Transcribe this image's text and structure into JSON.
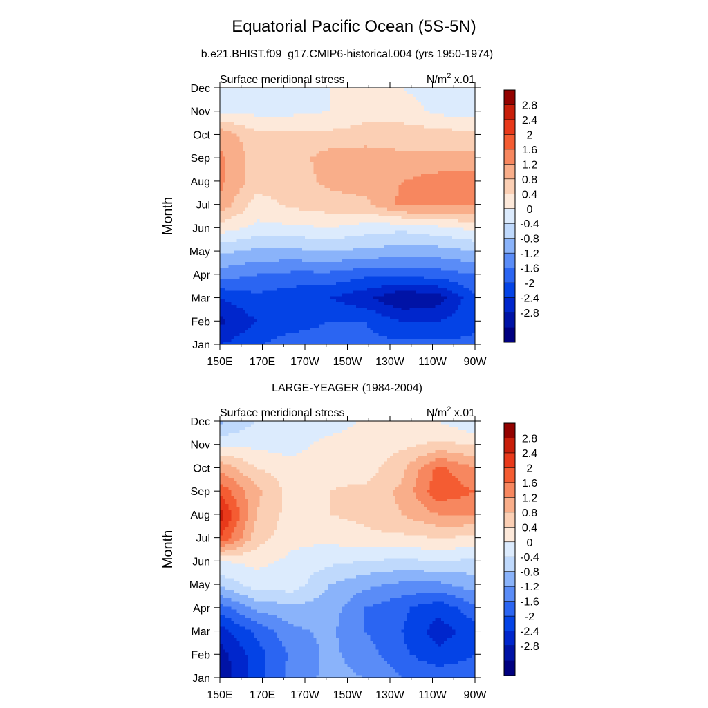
{
  "title": "Equatorial Pacific Ocean (5S-5N)",
  "subtitle": "b.e21.BHIST.f09_g17.CMIP6-historical.004 (yrs 1950-1974)",
  "panel2_title": "LARGE-YEAGER (1984-2004)",
  "chart_data": [
    {
      "type": "heatmap",
      "left_label": "Surface meridional stress",
      "right_label_base": "N/m",
      "right_label_sup": "2",
      "right_label_suffix": " x.01",
      "ylabel": "Month",
      "xlabel": "",
      "x_ticks": [
        "150E",
        "170E",
        "170W",
        "150W",
        "130W",
        "110W",
        "90W"
      ],
      "x_lon": [
        150,
        170,
        190,
        210,
        230,
        250,
        270
      ],
      "y_ticks": [
        "Jan",
        "Feb",
        "Mar",
        "Apr",
        "May",
        "Jun",
        "Jul",
        "Aug",
        "Sep",
        "Oct",
        "Nov",
        "Dec"
      ],
      "contour_levels": [
        -2.8,
        -2.4,
        -2.0,
        -1.6,
        -1.2,
        -0.8,
        -0.4,
        0,
        0.4,
        0.8,
        1.2,
        1.6,
        2.0,
        2.4,
        2.8
      ],
      "colorbar_labels": [
        "2.8",
        "2.4",
        "2",
        "1.6",
        "1.2",
        "0.8",
        "0.4",
        "0",
        "-0.4",
        "-0.8",
        "-1.2",
        "-1.6",
        "-2",
        "-2.4",
        "-2.8"
      ],
      "grid": false,
      "values": [
        [
          -2.0,
          -1.7,
          -1.2,
          -1.2,
          -1.5,
          -1.5,
          -1.5,
          -1.5
        ],
        [
          -2.5,
          -2.0,
          -2.0,
          -1.6,
          -1.6,
          -2.0,
          -2.0,
          -1.7
        ],
        [
          -2.0,
          -1.7,
          -1.9,
          -2.0,
          -2.3,
          -2.8,
          -2.6,
          -1.7
        ],
        [
          -1.0,
          -1.2,
          -1.3,
          -1.3,
          -1.5,
          -1.5,
          -1.4,
          -1.2
        ],
        [
          -0.3,
          -0.5,
          -0.5,
          -0.4,
          -0.5,
          -0.6,
          -0.6,
          -0.4
        ],
        [
          0.6,
          0.3,
          0.3,
          0.4,
          0.2,
          0.1,
          0.3,
          0.5
        ],
        [
          1.5,
          0.6,
          0.9,
          1.0,
          1.1,
          1.7,
          1.7,
          1.6
        ],
        [
          1.7,
          1.0,
          1.0,
          1.3,
          1.4,
          1.6,
          1.8,
          1.8
        ],
        [
          1.7,
          1.0,
          1.0,
          1.4,
          1.4,
          1.3,
          1.3,
          1.3
        ],
        [
          1.5,
          0.9,
          0.9,
          0.9,
          1.0,
          1.0,
          1.0,
          0.9
        ],
        [
          0.3,
          0.3,
          0.3,
          0.4,
          0.6,
          0.6,
          0.3,
          0.2
        ],
        [
          0.1,
          0.3,
          0.3,
          0.4,
          0.5,
          0.4,
          0.2,
          0.1
        ]
      ]
    },
    {
      "type": "heatmap",
      "left_label": "Surface meridional stress",
      "right_label_base": "N/m",
      "right_label_sup": "2",
      "right_label_suffix": " x.01",
      "ylabel": "Month",
      "xlabel": "",
      "x_ticks": [
        "150E",
        "170E",
        "170W",
        "150W",
        "130W",
        "110W",
        "90W"
      ],
      "x_lon": [
        150,
        170,
        190,
        210,
        230,
        250,
        270
      ],
      "y_ticks": [
        "Jan",
        "Feb",
        "Mar",
        "Apr",
        "May",
        "Jun",
        "Jul",
        "Aug",
        "Sep",
        "Oct",
        "Nov",
        "Dec"
      ],
      "contour_levels": [
        -2.8,
        -2.4,
        -2.0,
        -1.6,
        -1.2,
        -0.8,
        -0.4,
        0,
        0.4,
        0.8,
        1.2,
        1.6,
        2.0,
        2.4,
        2.8
      ],
      "colorbar_labels": [
        "2.8",
        "2.4",
        "2",
        "1.6",
        "1.2",
        "0.8",
        "0.4",
        "0",
        "-0.4",
        "-0.8",
        "-1.2",
        "-1.6",
        "-2",
        "-2.4",
        "-2.8"
      ],
      "grid": false,
      "values": [
        [
          -2.7,
          -1.8,
          -1.0,
          -0.7,
          -0.8,
          -1.2,
          -1.3,
          -1.3
        ],
        [
          -2.6,
          -1.8,
          -1.1,
          -0.7,
          -1.0,
          -1.5,
          -1.9,
          -1.6
        ],
        [
          -2.2,
          -1.5,
          -0.9,
          -0.7,
          -1.2,
          -1.6,
          -2.2,
          -1.8
        ],
        [
          -1.4,
          -0.7,
          -0.5,
          -0.6,
          -1.2,
          -1.5,
          -1.9,
          -1.3
        ],
        [
          -0.3,
          0.2,
          0.2,
          -0.4,
          -0.7,
          -0.9,
          -0.9,
          -0.6
        ],
        [
          0.4,
          0.5,
          0.3,
          0.1,
          0.0,
          -0.1,
          0.0,
          -0.1
        ],
        [
          2.4,
          1.0,
          0.5,
          0.5,
          0.7,
          0.7,
          0.8,
          0.7
        ],
        [
          3.0,
          1.2,
          0.6,
          0.8,
          0.9,
          1.2,
          1.6,
          1.6
        ],
        [
          2.3,
          1.3,
          0.6,
          0.8,
          0.9,
          1.3,
          2.3,
          2.0
        ],
        [
          1.5,
          0.8,
          0.6,
          0.7,
          0.6,
          1.1,
          2.1,
          1.6
        ],
        [
          0.3,
          0.3,
          0.2,
          0.6,
          0.6,
          0.7,
          0.9,
          0.8
        ],
        [
          -0.5,
          0.0,
          0.0,
          0.1,
          0.5,
          0.5,
          0.4,
          0.0
        ]
      ]
    }
  ],
  "colors": {
    "levels": [
      "#000080",
      "#0013a6",
      "#0026cc",
      "#0443e6",
      "#2b65f2",
      "#5a8cf7",
      "#8ab3fa",
      "#bfd9fc",
      "#dcebfd",
      "#fde9da",
      "#fbcfb4",
      "#f9ae8a",
      "#f7875f",
      "#f45c32",
      "#e8391a",
      "#c81e0a",
      "#930200"
    ],
    "axis": "#000000"
  }
}
